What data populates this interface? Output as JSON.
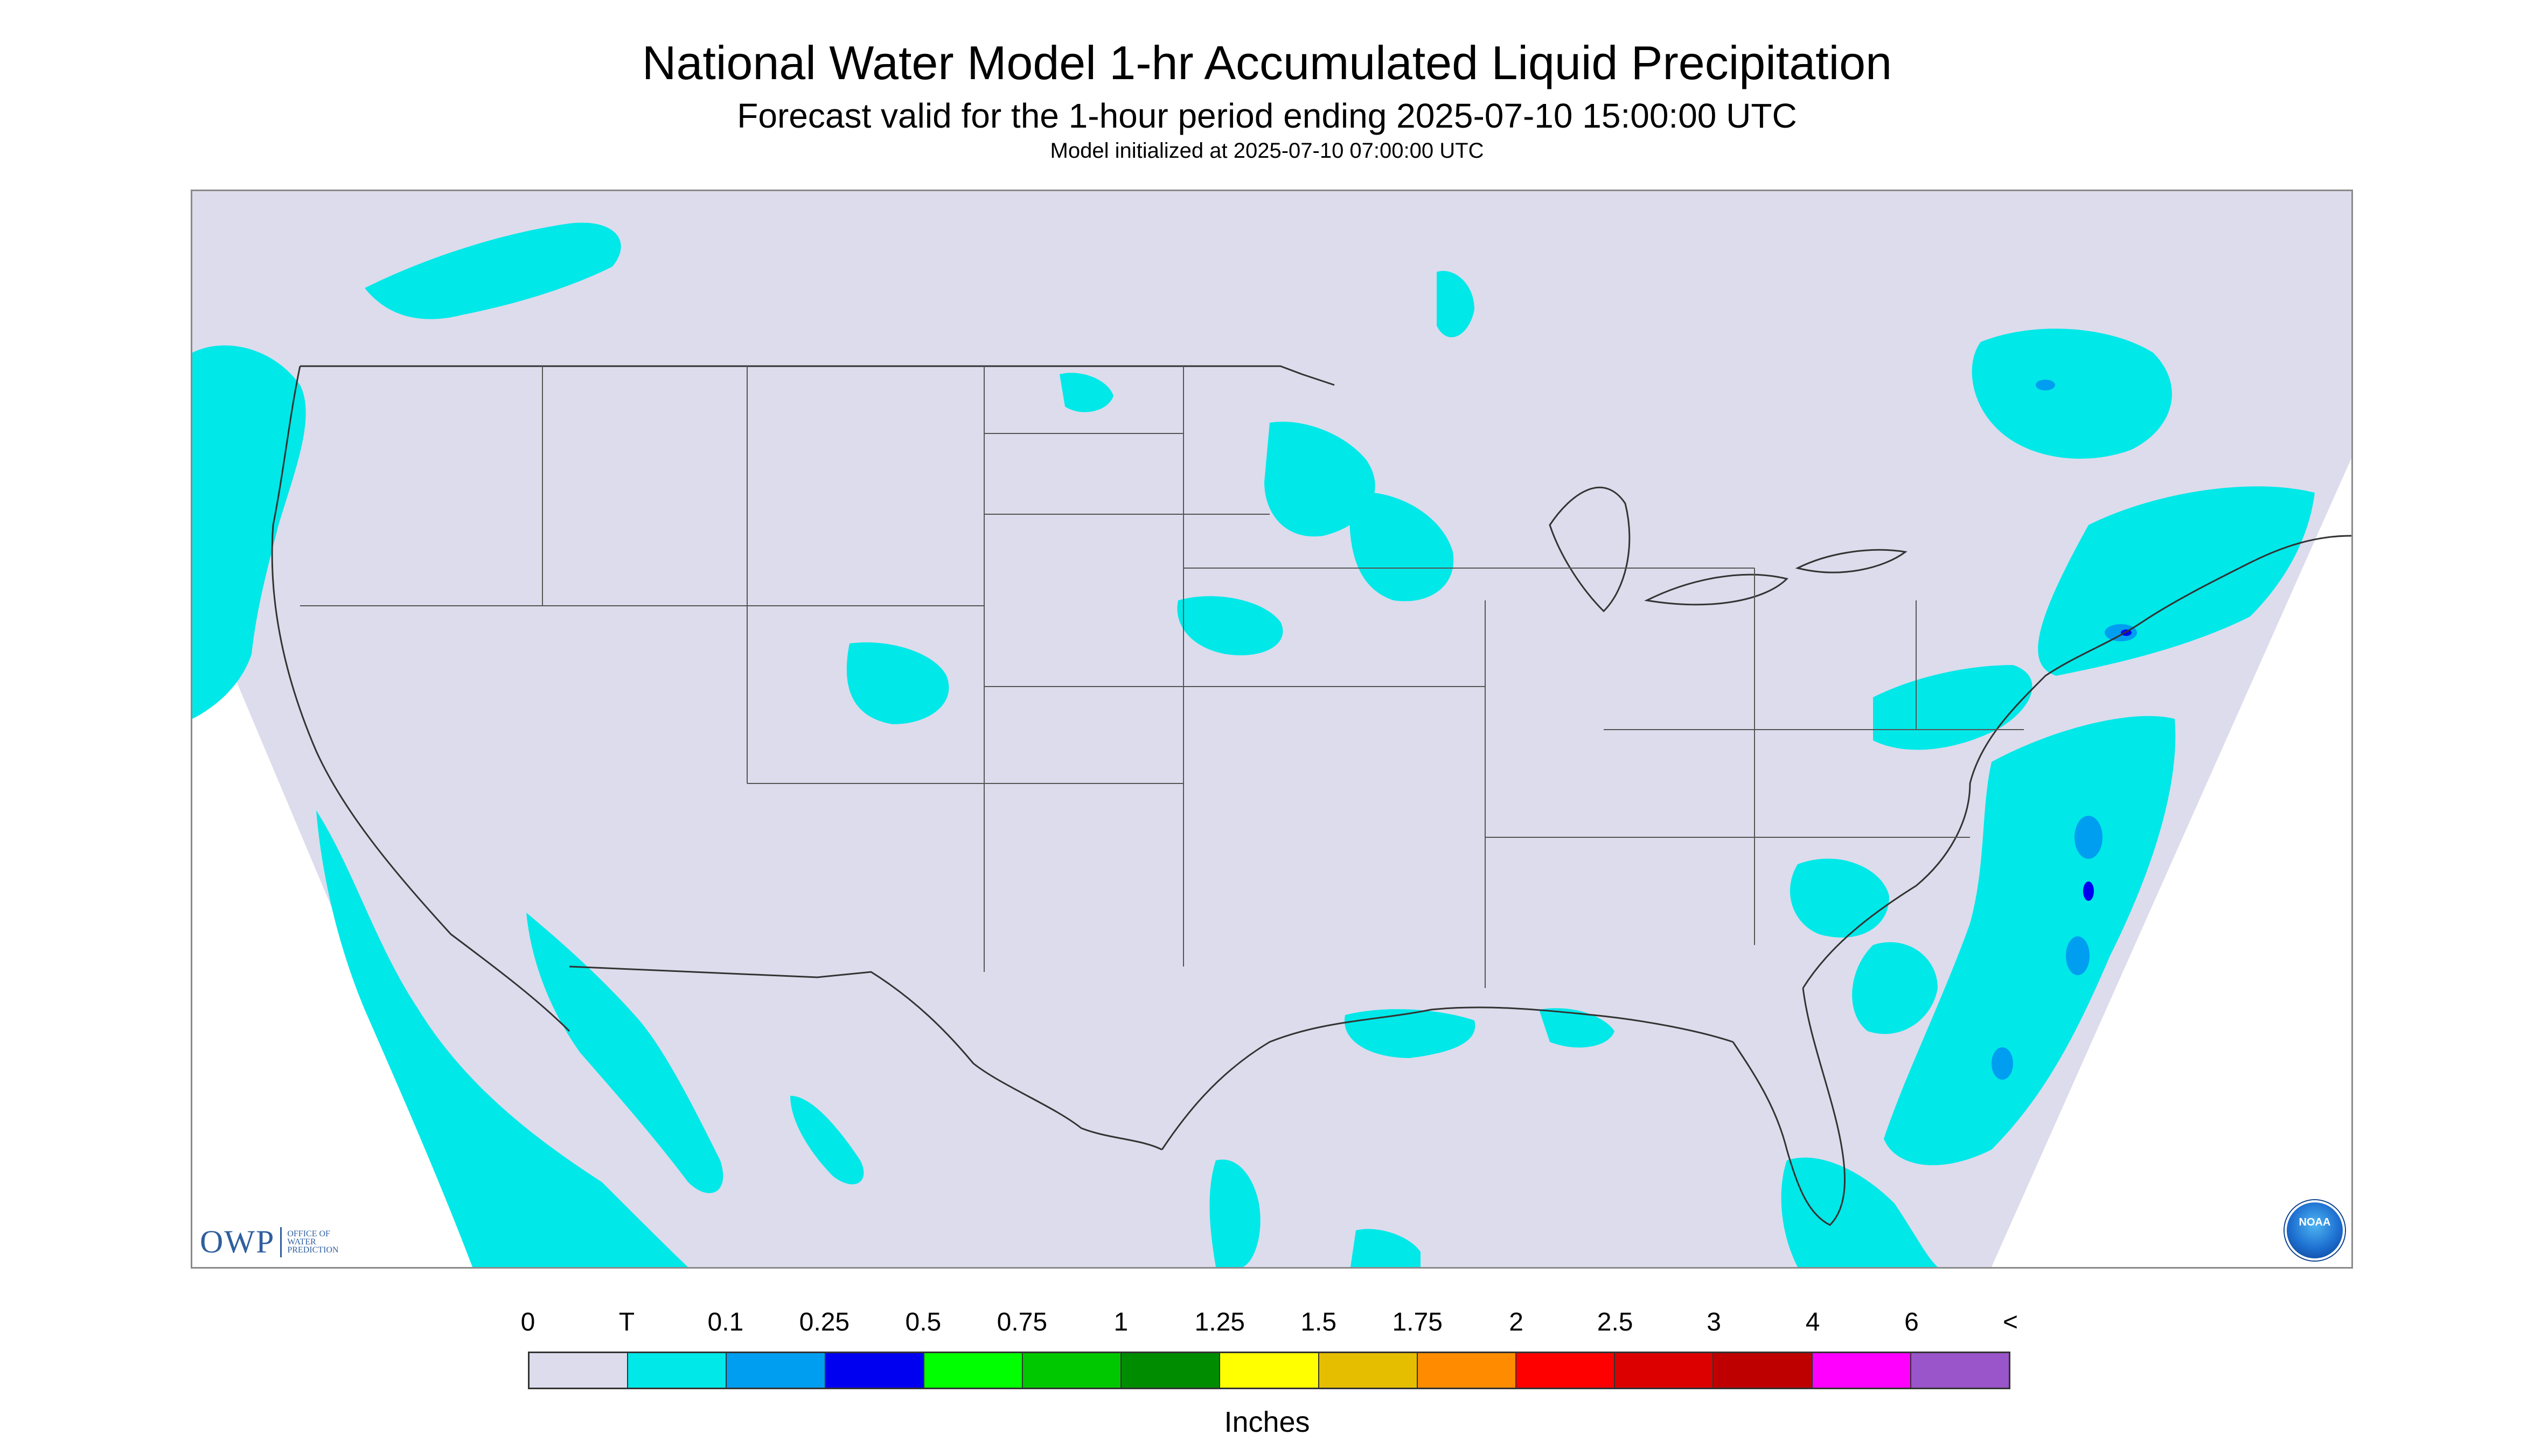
{
  "title": "National Water Model 1-hr Accumulated Liquid Precipitation",
  "subtitle": "Forecast valid for the 1-hour period ending 2025-07-10 15:00:00 UTC",
  "init_text": "Model initialized at 2025-07-10 07:00:00 UTC",
  "logos": {
    "owp": "OWP",
    "owp_sub": [
      "OFFICE OF",
      "WATER",
      "PREDICTION"
    ],
    "noaa": "NOAA"
  },
  "legend": {
    "labels": [
      "0",
      "T",
      "0.1",
      "0.25",
      "0.5",
      "0.75",
      "1",
      "1.25",
      "1.5",
      "1.75",
      "2",
      "2.5",
      "3",
      "4",
      "6",
      "<"
    ],
    "colors": [
      "#dcdcec",
      "#00e8e8",
      "#009ef0",
      "#0000f0",
      "#00ff00",
      "#00c800",
      "#008c00",
      "#ffff00",
      "#e6be00",
      "#ff8c00",
      "#ff0000",
      "#dc0000",
      "#be0000",
      "#ff00ff",
      "#9955c9"
    ],
    "units": "Inches"
  },
  "map": {
    "background_color": "#dcdcec",
    "outside_domain_color": "#ffffff",
    "boundary_color": "#333333",
    "precip_regions": [
      "Pacific Northwest coast and offshore",
      "California / Baja offshore",
      "Upper Midwest (Minnesota, Wisconsin, Iowa)",
      "Colorado",
      "Ontario / Quebec",
      "Mid-Atlantic and New England coast",
      "Southeast Atlantic offshore",
      "Gulf Coast",
      "South Florida",
      "Northern Mexico"
    ]
  }
}
